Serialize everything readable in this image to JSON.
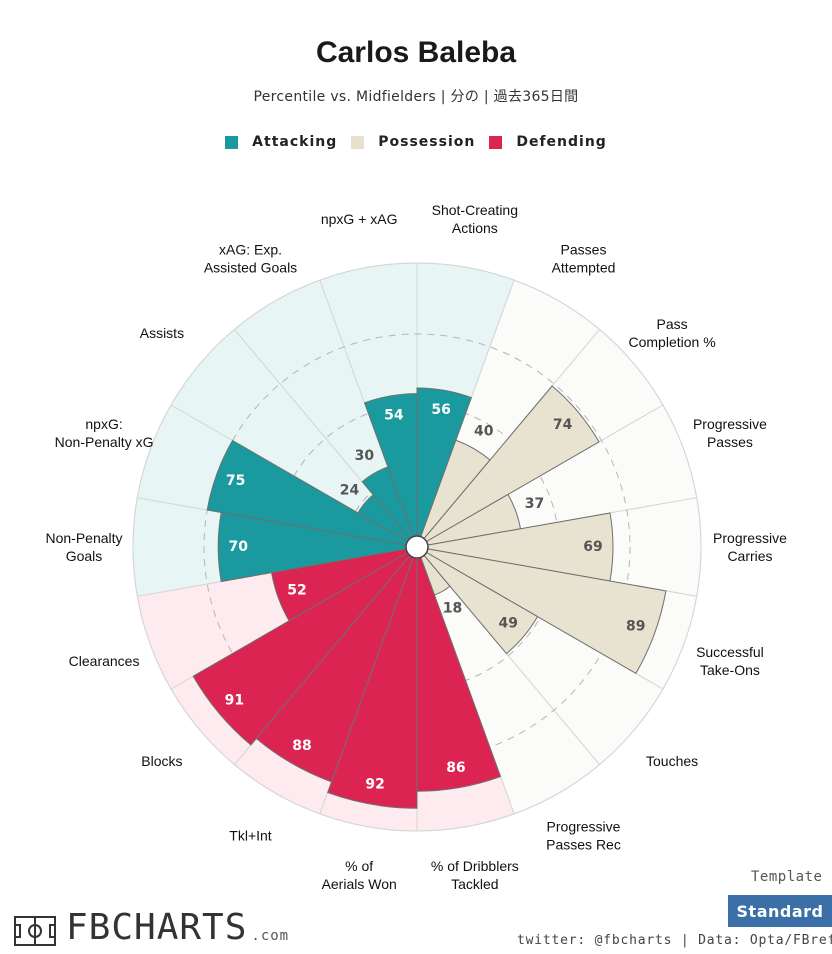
{
  "page": {
    "title": "Carlos Baleba",
    "subtitle": "Percentile vs. Midfielders | 分の | 過去365日間"
  },
  "legend": [
    {
      "label": "Attacking",
      "color": "#1a9a9e"
    },
    {
      "label": "Possession",
      "color": "#e8e0cc"
    },
    {
      "label": "Defending",
      "color": "#dc2452"
    }
  ],
  "chart_data": {
    "type": "polar-bar",
    "range": [
      0,
      100
    ],
    "gridlines": [
      25,
      50,
      75
    ],
    "categories": [
      {
        "label": "Shot-Creating Actions",
        "value": 56,
        "group": "Attacking"
      },
      {
        "label": "Passes Attempted",
        "value": 40,
        "group": "Possession"
      },
      {
        "label": "Pass Completion %",
        "value": 74,
        "group": "Possession"
      },
      {
        "label": "Progressive Passes",
        "value": 37,
        "group": "Possession"
      },
      {
        "label": "Progressive Carries",
        "value": 69,
        "group": "Possession"
      },
      {
        "label": "Successful Take-Ons",
        "value": 89,
        "group": "Possession"
      },
      {
        "label": "Touches",
        "value": 49,
        "group": "Possession"
      },
      {
        "label": "Progressive Passes Rec",
        "value": 18,
        "group": "Possession"
      },
      {
        "label": "% of Dribblers Tackled",
        "value": 86,
        "group": "Defending"
      },
      {
        "label": "% of Aerials Won",
        "value": 92,
        "group": "Defending"
      },
      {
        "label": "Tkl+Int",
        "value": 88,
        "group": "Defending"
      },
      {
        "label": "Blocks",
        "value": 91,
        "group": "Defending"
      },
      {
        "label": "Clearances",
        "value": 52,
        "group": "Defending"
      },
      {
        "label": "Non-Penalty Goals",
        "value": 70,
        "group": "Attacking"
      },
      {
        "label": "npxG: Non-Penalty xG",
        "value": 75,
        "group": "Attacking"
      },
      {
        "label": "Assists",
        "value": 24,
        "group": "Attacking"
      },
      {
        "label": "xAG: Exp. Assisted Goals",
        "value": 30,
        "group": "Attacking"
      },
      {
        "label": "npxG + xAG",
        "value": 54,
        "group": "Attacking"
      }
    ],
    "group_colors": {
      "Attacking": {
        "bar": "#1a9a9e",
        "background": "#e8f5f5",
        "text": "#ffffff"
      },
      "Possession": {
        "bar": "#e8e2d0",
        "background": "#fbfbf9",
        "text": "#555555"
      },
      "Defending": {
        "bar": "#dc2452",
        "background": "#fdebef",
        "text": "#ffffff"
      }
    },
    "outside_text_color": "#555555"
  },
  "footer": {
    "template_label": "Template",
    "template_value": "Standard",
    "credits": "twitter: @fbcharts | Data: Opta/FBref",
    "logo_text": "FBCHARTS",
    "logo_domain": ".com"
  }
}
